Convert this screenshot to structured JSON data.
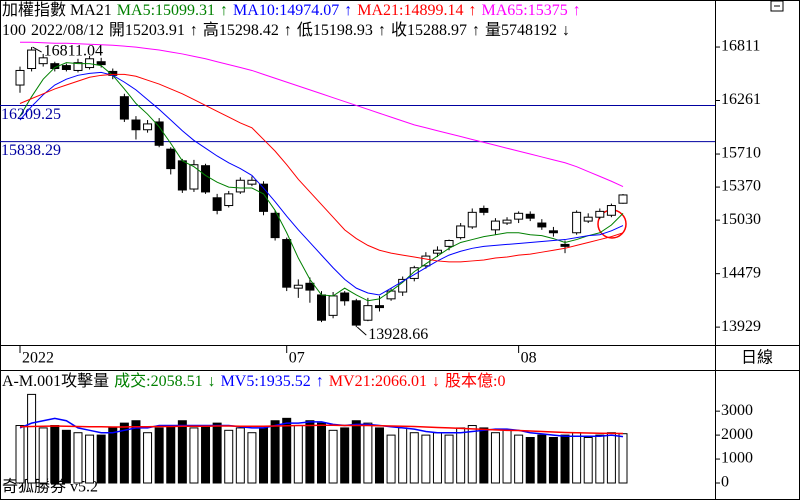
{
  "footer": "奇狐勝券 v5.2",
  "chart_data": [
    {
      "type": "candlestick",
      "title": "加權指數 MA21",
      "period": "日線",
      "info": [
        "100",
        "2022/08/12",
        "開15203.91",
        "↑",
        "高15298.42",
        "↑",
        "低15198.93",
        "↑",
        "收15288.97",
        "↑",
        "量5748192",
        "↓"
      ],
      "categories": [
        "2022",
        null,
        null,
        null,
        null,
        null,
        null,
        null,
        null,
        null,
        null,
        null,
        null,
        null,
        null,
        null,
        null,
        null,
        null,
        null,
        null,
        null,
        null,
        "07",
        null,
        null,
        null,
        null,
        null,
        null,
        null,
        null,
        null,
        null,
        null,
        null,
        null,
        null,
        null,
        null,
        null,
        null,
        null,
        "08",
        null,
        null,
        null,
        null,
        null,
        null,
        null,
        null,
        null
      ],
      "open": [
        16420,
        16590,
        16640,
        16640,
        16620,
        16570,
        16600,
        16660,
        16560,
        16300,
        16060,
        15960,
        16040,
        15760,
        15640,
        15350,
        15590,
        15260,
        15180,
        15320,
        15400,
        15400,
        15100,
        14830,
        14330,
        14380,
        14260,
        14050,
        14280,
        14200,
        14000,
        14150,
        14220,
        14290,
        14430,
        14560,
        14690,
        14760,
        14850,
        14960,
        15150,
        14930,
        15000,
        15040,
        15090,
        15000,
        14920,
        14780,
        14900,
        15020,
        15060,
        15080,
        15203.91
      ],
      "high": [
        16610,
        16811.04,
        16740,
        16660,
        16640,
        16690,
        16720,
        16700,
        16590,
        16330,
        16100,
        16060,
        16080,
        15780,
        15660,
        15650,
        15610,
        15300,
        15330,
        15470,
        15480,
        15430,
        15130,
        14850,
        14420,
        14440,
        14300,
        14290,
        14300,
        14220,
        14230,
        14250,
        14330,
        14450,
        14560,
        14700,
        14760,
        14830,
        15000,
        15150,
        15180,
        15050,
        15060,
        15120,
        15120,
        15040,
        14960,
        14820,
        15130,
        15100,
        15150,
        15200,
        15298.42
      ],
      "low": [
        16340,
        16560,
        16610,
        16560,
        16560,
        16550,
        16580,
        16600,
        16480,
        16040,
        15860,
        15930,
        15780,
        15500,
        15310,
        15320,
        15300,
        15090,
        15160,
        15300,
        15380,
        15080,
        14820,
        14300,
        14230,
        14180,
        13980,
        14020,
        14150,
        13928.66,
        13990,
        14090,
        14200,
        14250,
        14400,
        14530,
        14650,
        14720,
        14830,
        14940,
        15080,
        14880,
        14980,
        15000,
        15020,
        14930,
        14860,
        14690,
        14880,
        15000,
        15040,
        15060,
        15198.93
      ],
      "close": [
        16570,
        16780,
        16700,
        16590,
        16580,
        16650,
        16690,
        16630,
        16520,
        16070,
        15960,
        16020,
        15800,
        15560,
        15340,
        15600,
        15320,
        15130,
        15300,
        15440,
        15440,
        15120,
        14850,
        14340,
        14360,
        14310,
        14000,
        14250,
        14200,
        13950,
        14150,
        14130,
        14300,
        14420,
        14540,
        14660,
        14720,
        14820,
        14970,
        15110,
        15110,
        15020,
        15030,
        15100,
        15050,
        14960,
        14900,
        14760,
        15110,
        15060,
        15120,
        15180,
        15288.97
      ],
      "series": [
        {
          "name": "MA5:15099.31",
          "arrow": "↑",
          "color": "#008000",
          "values": [
            16100,
            16300,
            16480,
            16600,
            16650,
            16640,
            16640,
            16620,
            16520,
            16380,
            16230,
            16120,
            15990,
            15820,
            15640,
            15580,
            15490,
            15420,
            15370,
            15360,
            15360,
            15300,
            15130,
            14900,
            14640,
            14420,
            14260,
            14250,
            14330,
            14260,
            14200,
            14220,
            14300,
            14390,
            14500,
            14580,
            14660,
            14740,
            14800,
            14830,
            14860,
            14880,
            14900,
            14900,
            14880,
            14870,
            14840,
            14800,
            14830,
            14870,
            14900,
            14980,
            15099.31
          ]
        },
        {
          "name": "MA10:14974.07",
          "arrow": "↑",
          "color": "#0000ff",
          "values": [
            16060,
            16200,
            16320,
            16420,
            16480,
            16520,
            16540,
            16550,
            16520,
            16450,
            16370,
            16270,
            16170,
            16060,
            15950,
            15850,
            15770,
            15690,
            15620,
            15560,
            15490,
            15360,
            15220,
            15070,
            14930,
            14800,
            14670,
            14540,
            14420,
            14330,
            14280,
            14260,
            14330,
            14400,
            14470,
            14540,
            14610,
            14670,
            14710,
            14740,
            14760,
            14770,
            14780,
            14790,
            14800,
            14810,
            14820,
            14830,
            14850,
            14870,
            14880,
            14920,
            14974.07
          ]
        },
        {
          "name": "MA21:14899.14",
          "arrow": "↑",
          "color": "#ff0000",
          "values": [
            16230,
            16280,
            16330,
            16380,
            16420,
            16460,
            16500,
            16520,
            16530,
            16530,
            16510,
            16470,
            16430,
            16380,
            16330,
            16270,
            16210,
            16150,
            16090,
            16030,
            15980,
            15860,
            15740,
            15600,
            15450,
            15320,
            15190,
            15060,
            14930,
            14840,
            14770,
            14720,
            14690,
            14670,
            14650,
            14630,
            14610,
            14600,
            14600,
            14610,
            14620,
            14640,
            14650,
            14670,
            14680,
            14700,
            14720,
            14740,
            14770,
            14800,
            14830,
            14860,
            14899.14
          ]
        },
        {
          "name": "MA65:15375",
          "arrow": "↑",
          "color": "#ff00ff",
          "values": [
            16860,
            16860,
            16855,
            16850,
            16850,
            16845,
            16840,
            16835,
            16830,
            16820,
            16810,
            16795,
            16780,
            16760,
            16740,
            16715,
            16690,
            16660,
            16630,
            16600,
            16570,
            16530,
            16490,
            16450,
            16410,
            16370,
            16330,
            16290,
            16250,
            16210,
            16170,
            16130,
            16090,
            16050,
            16010,
            15980,
            15950,
            15920,
            15890,
            15860,
            15830,
            15800,
            15770,
            15740,
            15710,
            15680,
            15650,
            15620,
            15580,
            15530,
            15480,
            15430,
            15375
          ]
        }
      ],
      "reference_lines": [
        16209.25,
        15838.29
      ],
      "reference_color": "#0000a0",
      "annotations": [
        16811.04,
        13928.66
      ],
      "ylim": [
        13745,
        17295
      ],
      "yticks": [
        13929,
        14479,
        15030,
        15370,
        15710,
        16261,
        16811
      ]
    },
    {
      "type": "bar",
      "title": "A-M.001攻擊量",
      "volume_label": "成交:2058.51",
      "volume_arrow": "↓",
      "label_color": "#008000",
      "extra_label": "股本億:0",
      "extra_color": "#ff0000",
      "values": [
        2400,
        3700,
        2300,
        2400,
        2200,
        2100,
        2000,
        2000,
        2300,
        2500,
        2600,
        2100,
        2300,
        2400,
        2600,
        2300,
        2400,
        2500,
        2200,
        2300,
        2100,
        2300,
        2600,
        2700,
        2400,
        2600,
        2500,
        2200,
        2300,
        2600,
        2500,
        2300,
        2000,
        2300,
        2100,
        2000,
        2100,
        2000,
        2300,
        2400,
        2300,
        2100,
        2200,
        2000,
        1900,
        2000,
        1900,
        2000,
        2100,
        1900,
        2000,
        2100,
        2058.51
      ],
      "series": [
        {
          "name": "MV5:1935.52",
          "arrow": "↑",
          "color": "#0000ff",
          "values": [
            2300,
            2500,
            2600,
            2700,
            2600,
            2300,
            2200,
            2100,
            2100,
            2200,
            2300,
            2300,
            2400,
            2400,
            2400,
            2400,
            2400,
            2400,
            2400,
            2350,
            2300,
            2300,
            2400,
            2500,
            2500,
            2550,
            2550,
            2450,
            2400,
            2450,
            2450,
            2400,
            2350,
            2300,
            2250,
            2150,
            2100,
            2100,
            2100,
            2150,
            2200,
            2250,
            2250,
            2200,
            2100,
            2050,
            2000,
            1950,
            1950,
            1950,
            1950,
            2000,
            1935.52
          ]
        },
        {
          "name": "MV21:2066.01",
          "arrow": "↓",
          "color": "#ff0000",
          "values": [
            2350,
            2360,
            2370,
            2380,
            2370,
            2360,
            2350,
            2350,
            2340,
            2340,
            2350,
            2350,
            2360,
            2360,
            2370,
            2370,
            2370,
            2380,
            2380,
            2370,
            2370,
            2370,
            2380,
            2390,
            2400,
            2400,
            2410,
            2410,
            2400,
            2400,
            2400,
            2390,
            2380,
            2370,
            2360,
            2340,
            2320,
            2300,
            2280,
            2260,
            2240,
            2220,
            2200,
            2190,
            2170,
            2150,
            2130,
            2110,
            2100,
            2090,
            2080,
            2070,
            2066.01
          ]
        }
      ],
      "ylim": [
        0,
        3800
      ],
      "yticks": [
        0,
        1000,
        2000,
        3000
      ]
    }
  ]
}
